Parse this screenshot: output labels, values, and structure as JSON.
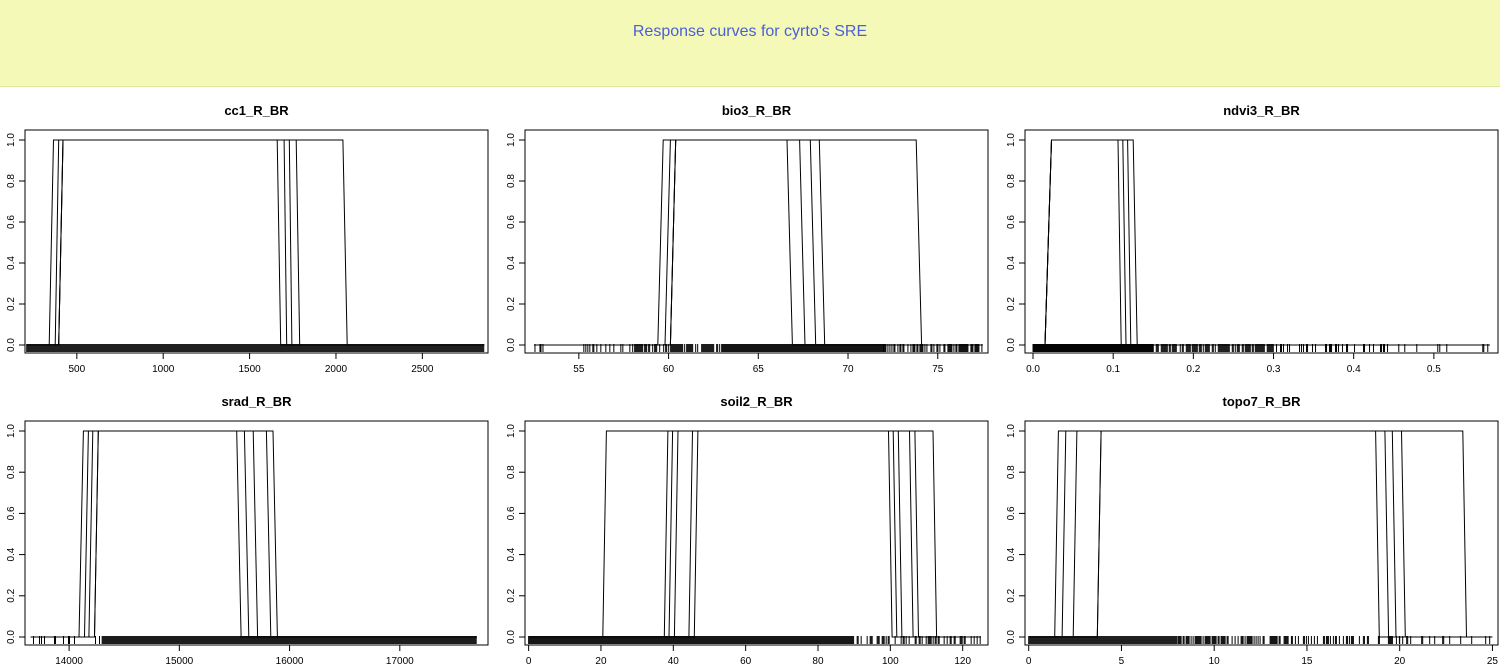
{
  "page": {
    "title": "Response curves for cyrto's SRE"
  },
  "colors": {
    "banner_bg": "#f5f9b8",
    "title": "#4a5fd6",
    "line": "#000000"
  },
  "chart_data": [
    {
      "type": "line",
      "title": "cc1_R_BR",
      "xlim": [
        200,
        2880
      ],
      "ylim": [
        0,
        1
      ],
      "xticks": [
        500,
        1000,
        1500,
        2000,
        2500
      ],
      "yticks": [
        0.0,
        0.2,
        0.4,
        0.6,
        0.8,
        1.0
      ],
      "rug_range": [
        210,
        2860
      ],
      "rug_density": [
        [
          210,
          2860,
          1.0
        ]
      ],
      "series": [
        {
          "x": [
            210,
            340,
            365,
            1660,
            1680,
            2860
          ],
          "y": [
            0,
            0,
            1,
            1,
            0,
            0
          ]
        },
        {
          "x": [
            210,
            375,
            395,
            1700,
            1715,
            2860
          ],
          "y": [
            0,
            0,
            1,
            1,
            0,
            0
          ]
        },
        {
          "x": [
            210,
            395,
            420,
            1730,
            1745,
            2860
          ],
          "y": [
            0,
            0,
            1,
            1,
            0,
            0
          ]
        },
        {
          "x": [
            210,
            395,
            420,
            1770,
            1790,
            2860
          ],
          "y": [
            0,
            0,
            1,
            1,
            0,
            0
          ]
        },
        {
          "x": [
            210,
            395,
            420,
            2040,
            2065,
            2860
          ],
          "y": [
            0,
            0,
            1,
            1,
            0,
            0
          ]
        }
      ]
    },
    {
      "type": "line",
      "title": "bio3_R_BR",
      "xlim": [
        52,
        77.8
      ],
      "ylim": [
        0,
        1
      ],
      "xticks": [
        55,
        60,
        65,
        70,
        75
      ],
      "yticks": [
        0.0,
        0.2,
        0.4,
        0.6,
        0.8,
        1.0
      ],
      "rug_range": [
        52.5,
        77.5
      ],
      "rug_density": [
        [
          52.5,
          55,
          0.1
        ],
        [
          55,
          58,
          0.35
        ],
        [
          58,
          63,
          0.7
        ],
        [
          63,
          72,
          1.0
        ],
        [
          72,
          77.5,
          0.6
        ]
      ],
      "series": [
        {
          "x": [
            52.5,
            59.4,
            59.7,
            66.6,
            66.9,
            77.5
          ],
          "y": [
            0,
            0,
            1,
            1,
            0,
            0
          ]
        },
        {
          "x": [
            52.5,
            59.8,
            60.1,
            67.3,
            67.6,
            77.5
          ],
          "y": [
            0,
            0,
            1,
            1,
            0,
            0
          ]
        },
        {
          "x": [
            52.5,
            60.1,
            60.4,
            67.9,
            68.2,
            77.5
          ],
          "y": [
            0,
            0,
            1,
            1,
            0,
            0
          ]
        },
        {
          "x": [
            52.5,
            60.1,
            60.4,
            68.4,
            68.7,
            77.5
          ],
          "y": [
            0,
            0,
            1,
            1,
            0,
            0
          ]
        },
        {
          "x": [
            52.5,
            60.1,
            60.4,
            73.8,
            74.1,
            77.5
          ],
          "y": [
            0,
            0,
            1,
            1,
            0,
            0
          ]
        }
      ]
    },
    {
      "type": "line",
      "title": "ndvi3_R_BR",
      "xlim": [
        -0.01,
        0.58
      ],
      "ylim": [
        0,
        1
      ],
      "xticks": [
        0.0,
        0.1,
        0.2,
        0.3,
        0.4,
        0.5
      ],
      "yticks": [
        0.0,
        0.2,
        0.4,
        0.6,
        0.8,
        1.0
      ],
      "rug_range": [
        0.0,
        0.57
      ],
      "rug_density": [
        [
          0.0,
          0.15,
          1.0
        ],
        [
          0.15,
          0.3,
          0.7
        ],
        [
          0.3,
          0.45,
          0.3
        ],
        [
          0.45,
          0.57,
          0.1
        ]
      ],
      "series": [
        {
          "x": [
            0.0,
            0.015,
            0.023,
            0.106,
            0.11,
            0.57
          ],
          "y": [
            0,
            0,
            1,
            1,
            0,
            0
          ]
        },
        {
          "x": [
            0.0,
            0.015,
            0.023,
            0.112,
            0.116,
            0.57
          ],
          "y": [
            0,
            0,
            1,
            1,
            0,
            0
          ]
        },
        {
          "x": [
            0.0,
            0.015,
            0.023,
            0.118,
            0.122,
            0.57
          ],
          "y": [
            0,
            0,
            1,
            1,
            0,
            0
          ]
        },
        {
          "x": [
            0.0,
            0.015,
            0.023,
            0.125,
            0.13,
            0.57
          ],
          "y": [
            0,
            0,
            1,
            1,
            0,
            0
          ]
        }
      ]
    },
    {
      "type": "line",
      "title": "srad_R_BR",
      "xlim": [
        13600,
        17800
      ],
      "ylim": [
        0,
        1
      ],
      "xticks": [
        14000,
        15000,
        16000,
        17000
      ],
      "yticks": [
        0.0,
        0.2,
        0.4,
        0.6,
        0.8,
        1.0
      ],
      "rug_range": [
        13650,
        17700
      ],
      "rug_density": [
        [
          13650,
          14300,
          0.25
        ],
        [
          14300,
          17700,
          1.0
        ]
      ],
      "series": [
        {
          "x": [
            13650,
            14090,
            14130,
            15520,
            15560,
            17700
          ],
          "y": [
            0,
            0,
            1,
            1,
            0,
            0
          ]
        },
        {
          "x": [
            13650,
            14140,
            14175,
            15590,
            15630,
            17700
          ],
          "y": [
            0,
            0,
            1,
            1,
            0,
            0
          ]
        },
        {
          "x": [
            13650,
            14180,
            14215,
            15670,
            15710,
            17700
          ],
          "y": [
            0,
            0,
            1,
            1,
            0,
            0
          ]
        },
        {
          "x": [
            13650,
            14230,
            14265,
            15790,
            15830,
            17700
          ],
          "y": [
            0,
            0,
            1,
            1,
            0,
            0
          ]
        },
        {
          "x": [
            13650,
            14230,
            14265,
            15850,
            15890,
            17700
          ],
          "y": [
            0,
            0,
            1,
            1,
            0,
            0
          ]
        }
      ]
    },
    {
      "type": "line",
      "title": "soil2_R_BR",
      "xlim": [
        -1,
        127
      ],
      "ylim": [
        0,
        1
      ],
      "xticks": [
        0,
        20,
        40,
        60,
        80,
        100,
        120
      ],
      "yticks": [
        0.0,
        0.2,
        0.4,
        0.6,
        0.8,
        1.0
      ],
      "rug_range": [
        0,
        125
      ],
      "rug_density": [
        [
          0,
          90,
          1.0
        ],
        [
          90,
          125,
          0.35
        ]
      ],
      "series": [
        {
          "x": [
            0,
            20.5,
            21.5,
            99.5,
            100.5,
            125
          ],
          "y": [
            0,
            0,
            1,
            1,
            0,
            0
          ]
        },
        {
          "x": [
            0,
            37.5,
            38.5,
            100.8,
            101.8,
            125
          ],
          "y": [
            0,
            0,
            1,
            1,
            0,
            0
          ]
        },
        {
          "x": [
            0,
            38.8,
            39.8,
            102.2,
            103.2,
            125
          ],
          "y": [
            0,
            0,
            1,
            1,
            0,
            0
          ]
        },
        {
          "x": [
            0,
            40.3,
            41.3,
            105.3,
            106.3,
            125
          ],
          "y": [
            0,
            0,
            1,
            1,
            0,
            0
          ]
        },
        {
          "x": [
            0,
            44.3,
            45.3,
            106.8,
            107.8,
            125
          ],
          "y": [
            0,
            0,
            1,
            1,
            0,
            0
          ]
        },
        {
          "x": [
            0,
            45.8,
            46.8,
            111.8,
            112.8,
            125
          ],
          "y": [
            0,
            0,
            1,
            1,
            0,
            0
          ]
        }
      ]
    },
    {
      "type": "line",
      "title": "topo7_R_BR",
      "xlim": [
        -0.2,
        25.3
      ],
      "ylim": [
        0,
        1
      ],
      "xticks": [
        0,
        5,
        10,
        15,
        20,
        25
      ],
      "yticks": [
        0.0,
        0.2,
        0.4,
        0.6,
        0.8,
        1.0
      ],
      "rug_range": [
        0,
        25
      ],
      "rug_density": [
        [
          0,
          8,
          1.0
        ],
        [
          8,
          14,
          0.6
        ],
        [
          14,
          20,
          0.35
        ],
        [
          20,
          25,
          0.15
        ]
      ],
      "series": [
        {
          "x": [
            0,
            1.4,
            1.6,
            18.7,
            18.9,
            25
          ],
          "y": [
            0,
            0,
            1,
            1,
            0,
            0
          ]
        },
        {
          "x": [
            0,
            1.8,
            2.0,
            19.2,
            19.4,
            25
          ],
          "y": [
            0,
            0,
            1,
            1,
            0,
            0
          ]
        },
        {
          "x": [
            0,
            2.4,
            2.6,
            19.6,
            19.8,
            25
          ],
          "y": [
            0,
            0,
            1,
            1,
            0,
            0
          ]
        },
        {
          "x": [
            0,
            3.7,
            3.9,
            20.1,
            20.3,
            25
          ],
          "y": [
            0,
            0,
            1,
            1,
            0,
            0
          ]
        },
        {
          "x": [
            0,
            3.7,
            3.9,
            23.4,
            23.6,
            25
          ],
          "y": [
            0,
            0,
            1,
            1,
            0,
            0
          ]
        }
      ]
    }
  ]
}
